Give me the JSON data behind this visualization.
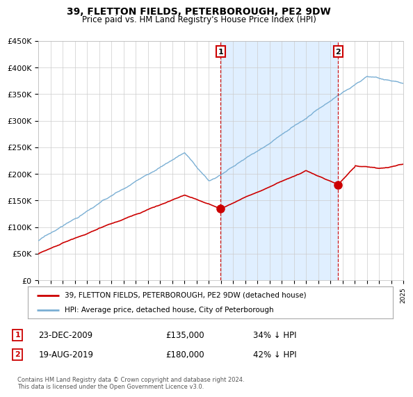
{
  "title": "39, FLETTON FIELDS, PETERBOROUGH, PE2 9DW",
  "subtitle": "Price paid vs. HM Land Registry's House Price Index (HPI)",
  "ylim": [
    0,
    450000
  ],
  "yticks": [
    0,
    50000,
    100000,
    150000,
    200000,
    250000,
    300000,
    350000,
    400000,
    450000
  ],
  "ytick_labels": [
    "£0",
    "£50K",
    "£100K",
    "£150K",
    "£200K",
    "£250K",
    "£300K",
    "£350K",
    "£400K",
    "£450K"
  ],
  "sale1_date": 2009.97,
  "sale1_price": 135000,
  "sale1_label": "1",
  "sale2_date": 2019.63,
  "sale2_price": 180000,
  "sale2_label": "2",
  "red_color": "#cc0000",
  "blue_color": "#7aafd4",
  "shade_color": "#ddeeff",
  "vline_color": "#cc0000",
  "annotation_box_color": "#cc0000",
  "legend_entry1": "39, FLETTON FIELDS, PETERBOROUGH, PE2 9DW (detached house)",
  "legend_entry2": "HPI: Average price, detached house, City of Peterborough",
  "table_row1": [
    "1",
    "23-DEC-2009",
    "£135,000",
    "34% ↓ HPI"
  ],
  "table_row2": [
    "2",
    "19-AUG-2019",
    "£180,000",
    "42% ↓ HPI"
  ],
  "footer": "Contains HM Land Registry data © Crown copyright and database right 2024.\nThis data is licensed under the Open Government Licence v3.0.",
  "bg_color": "#ffffff",
  "plot_bg_color": "#ffffff",
  "xmin": 1995,
  "xmax": 2025
}
